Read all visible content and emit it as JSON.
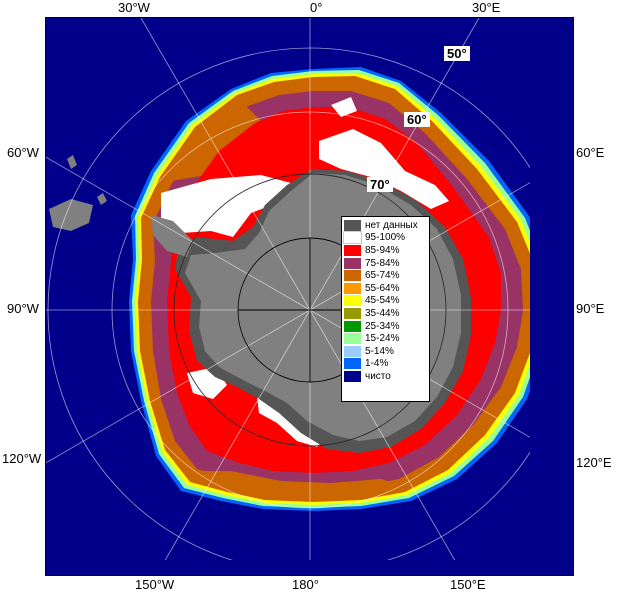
{
  "edge_labels": {
    "top_left": "30°W",
    "top_center": "0°",
    "top_right": "30°E",
    "left_upper": "60°W",
    "left_middle": "90°W",
    "left_lower": "120°W",
    "right_upper": "60°E",
    "right_middle": "90°E",
    "right_lower": "120°E",
    "bottom_left": "150°W",
    "bottom_center": "180°",
    "bottom_right": "150°E"
  },
  "latitude_labels": [
    "50°",
    "60°",
    "70°"
  ],
  "legend": {
    "items": [
      {
        "label": "нет данных",
        "color": "#555555"
      },
      {
        "label": "95-100%",
        "color": "#ffffff"
      },
      {
        "label": "85-94%",
        "color": "#ff0000"
      },
      {
        "label": "75-84%",
        "color": "#993366"
      },
      {
        "label": "65-74%",
        "color": "#cc6600"
      },
      {
        "label": "55-64%",
        "color": "#ff9900"
      },
      {
        "label": "45-54%",
        "color": "#ffff00"
      },
      {
        "label": "35-44%",
        "color": "#999900"
      },
      {
        "label": "25-34%",
        "color": "#009900"
      },
      {
        "label": "15-24%",
        "color": "#99ff99"
      },
      {
        "label": "5-14%",
        "color": "#99ccff"
      },
      {
        "label": "1-4%",
        "color": "#0066ff"
      },
      {
        "label": "чисто",
        "color": "#00008b"
      }
    ]
  },
  "colors": {
    "ocean": "#00008b",
    "land": "#808080",
    "graticule": "#ffffff",
    "inner_circle": "#000000"
  }
}
